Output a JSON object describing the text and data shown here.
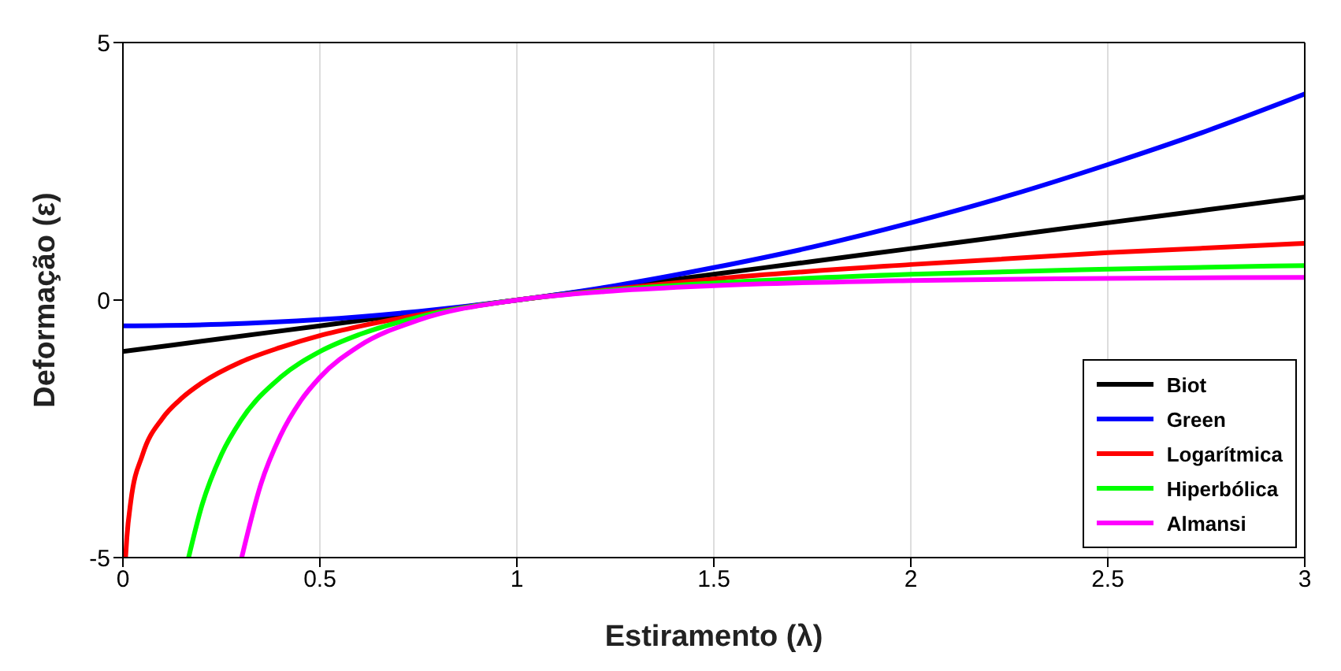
{
  "chart_data": {
    "type": "line",
    "xlabel": "Estiramento (λ)",
    "ylabel": "Deformação (ε)",
    "xlim": [
      0,
      3
    ],
    "xticks": [
      0,
      0.5,
      1,
      1.5,
      2,
      2.5,
      3
    ],
    "ylim": [
      -5,
      5
    ],
    "yticks": [
      -5,
      0,
      5
    ],
    "grid": "x",
    "legend": "bottom right",
    "marker": "none",
    "line_style": "solid",
    "series": [
      {
        "name": "Biot",
        "color": "#000000",
        "x": [
          0,
          0.25,
          0.5,
          1,
          1.5,
          1.75,
          2,
          2.25,
          2.5,
          2.75,
          3
        ],
        "values": [
          -1,
          -0.75,
          -0.5,
          0,
          0.5,
          0.75,
          1,
          1.25,
          1.5,
          1.75,
          2
        ]
      },
      {
        "name": "Green",
        "color": "#0000ff",
        "x": [
          0,
          0.25,
          0.5,
          0.75,
          1,
          1.25,
          1.5,
          1.75,
          2,
          2.25,
          2.5,
          2.75,
          3
        ],
        "values": [
          -0.5,
          -0.47,
          -0.38,
          -0.22,
          0,
          0.28,
          0.63,
          1.03,
          1.5,
          2.03,
          2.63,
          3.28,
          4
        ]
      },
      {
        "name": "Logarítmica",
        "color": "#ff0000",
        "x": [
          0.0067,
          0.01,
          0.02,
          0.05,
          0.1,
          0.15,
          0.2,
          0.3,
          0.4,
          0.5,
          0.6,
          0.75,
          1,
          1.25,
          1.5,
          2,
          2.5,
          3
        ],
        "values": [
          -5,
          -4.61,
          -3.91,
          -3,
          -2.3,
          -1.9,
          -1.61,
          -1.2,
          -0.92,
          -0.69,
          -0.51,
          -0.29,
          0,
          0.22,
          0.41,
          0.69,
          0.92,
          1.1
        ]
      },
      {
        "name": "Hiperbólica",
        "color": "#00ff00",
        "x": [
          0.1667,
          0.2,
          0.25,
          0.3,
          0.4,
          0.5,
          0.6,
          0.75,
          1,
          1.25,
          1.5,
          2,
          2.5,
          3
        ],
        "values": [
          -5,
          -4,
          -3,
          -2.33,
          -1.5,
          -1,
          -0.67,
          -0.33,
          0,
          0.2,
          0.33,
          0.5,
          0.6,
          0.67
        ]
      },
      {
        "name": "Almansi",
        "color": "#ff00ff",
        "x": [
          0.3015,
          0.35,
          0.4,
          0.45,
          0.5,
          0.6,
          0.75,
          1,
          1.25,
          1.5,
          2,
          2.5,
          3
        ],
        "values": [
          -5,
          -3.58,
          -2.63,
          -1.97,
          -1.5,
          -0.89,
          -0.39,
          0,
          0.18,
          0.28,
          0.38,
          0.42,
          0.44
        ]
      }
    ]
  }
}
